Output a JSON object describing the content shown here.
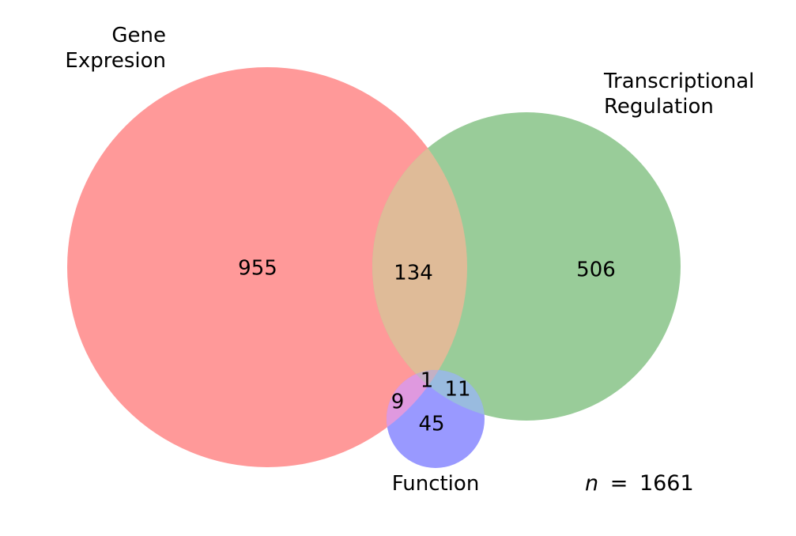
{
  "sets": {
    "gene_expression": {
      "label_line1": "Gene",
      "label_line2": "Expresion",
      "color": "#ff9999"
    },
    "transcriptional_regulation": {
      "label_line1": "Transcriptional",
      "label_line2": "Regulation",
      "color": "#99cc99"
    },
    "function": {
      "label": "Function",
      "color": "#9999ff"
    }
  },
  "overlap_colors": {
    "gene_transcription": "#dfbb98",
    "gene_function": "#df99df",
    "transcription_function": "#99bbdf",
    "all_three": "#c4b0c4"
  },
  "regions": {
    "gene_only": "955",
    "gene_and_transcription": "134",
    "transcription_only": "506",
    "all_three": "1",
    "gene_and_function": "9",
    "transcription_and_function": "11",
    "function_only": "45"
  },
  "total": {
    "symbol": "n",
    "equals": "=",
    "value": "1661"
  }
}
